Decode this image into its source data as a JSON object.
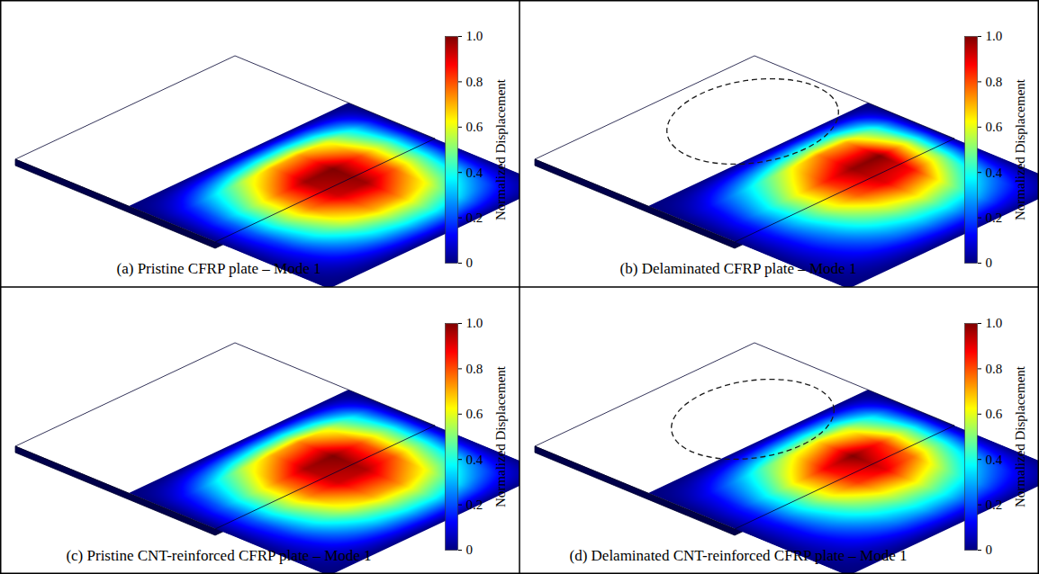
{
  "chart_data": [
    {
      "type": "heatmap",
      "title": "(a) Pristine CFRP plate – Mode 1",
      "tick_labels": false,
      "cells": [
        [
          0,
          0,
          0,
          0,
          0,
          0,
          0,
          0,
          0
        ],
        [
          0,
          0.16,
          0.37,
          0.57,
          0.7,
          0.72,
          0.6,
          0.34,
          0
        ],
        [
          0,
          0.22,
          0.5,
          0.76,
          0.97,
          1.0,
          0.8,
          0.46,
          0
        ],
        [
          0,
          0.21,
          0.49,
          0.75,
          0.92,
          0.97,
          0.79,
          0.45,
          0
        ],
        [
          0,
          0.16,
          0.38,
          0.58,
          0.71,
          0.73,
          0.61,
          0.35,
          0
        ],
        [
          0,
          0.09,
          0.2,
          0.31,
          0.38,
          0.4,
          0.33,
          0.19,
          0
        ],
        [
          0,
          0,
          0,
          0,
          0,
          0,
          0,
          0,
          0
        ]
      ],
      "colorbar": {
        "label": "Normalized Displacement",
        "range": [
          0,
          1
        ],
        "ticks": [
          0,
          0.2,
          0.4,
          0.6,
          0.8,
          {
            "value": 1,
            "label": "1.0"
          }
        ]
      }
    },
    {
      "type": "heatmap",
      "title": "(b) Delaminated CFRP plate – Mode 1",
      "tick_labels": false,
      "line_style": "dashed",
      "cells": [
        [
          0,
          0,
          0,
          0,
          0,
          0,
          0,
          0,
          0
        ],
        [
          0,
          0.12,
          0.28,
          0.45,
          0.62,
          0.74,
          0.7,
          0.42,
          0
        ],
        [
          0,
          0.16,
          0.38,
          0.62,
          0.84,
          0.98,
          1.0,
          0.58,
          0
        ],
        [
          0,
          0.15,
          0.35,
          0.58,
          0.78,
          0.9,
          0.86,
          0.52,
          0
        ],
        [
          0,
          0.12,
          0.26,
          0.42,
          0.55,
          0.62,
          0.56,
          0.33,
          0
        ],
        [
          0,
          0.07,
          0.15,
          0.23,
          0.29,
          0.31,
          0.28,
          0.17,
          0
        ],
        [
          0,
          0,
          0,
          0,
          0,
          0,
          0,
          0,
          0
        ]
      ],
      "colorbar": {
        "label": "Normalized Displacement",
        "range": [
          0,
          1
        ],
        "ticks": [
          0,
          0.2,
          0.4,
          0.6,
          0.8,
          {
            "value": 1,
            "label": "1.0"
          }
        ]
      }
    },
    {
      "type": "heatmap",
      "title": "(c) Pristine CNT-reinforced CFRP plate – Mode 1",
      "tick_labels": false,
      "cells": [
        [
          0,
          0,
          0,
          0,
          0,
          0,
          0,
          0,
          0
        ],
        [
          0,
          0.16,
          0.37,
          0.57,
          0.7,
          0.74,
          0.6,
          0.34,
          0
        ],
        [
          0,
          0.22,
          0.5,
          0.76,
          0.96,
          1.0,
          0.8,
          0.46,
          0
        ],
        [
          0,
          0.21,
          0.49,
          0.75,
          0.92,
          0.95,
          0.79,
          0.45,
          0
        ],
        [
          0,
          0.16,
          0.38,
          0.58,
          0.71,
          0.73,
          0.61,
          0.35,
          0
        ],
        [
          0,
          0.09,
          0.2,
          0.31,
          0.38,
          0.4,
          0.33,
          0.19,
          0
        ],
        [
          0,
          0,
          0,
          0,
          0,
          0,
          0,
          0,
          0
        ]
      ],
      "colorbar": {
        "label": "Normalized Displacement",
        "range": [
          0,
          1
        ],
        "ticks": [
          0,
          0.2,
          0.4,
          0.6,
          0.8,
          {
            "value": 1,
            "label": "1.0"
          }
        ]
      }
    },
    {
      "type": "heatmap",
      "title": "(d) Delaminated CNT-reinforced CFRP plate – Mode 1",
      "tick_labels": false,
      "line_style": "dashed",
      "cells": [
        [
          0,
          0,
          0,
          0,
          0,
          0,
          0,
          0,
          0
        ],
        [
          0,
          0.12,
          0.28,
          0.46,
          0.6,
          0.66,
          0.58,
          0.34,
          0
        ],
        [
          0,
          0.16,
          0.4,
          0.66,
          0.88,
          1.0,
          0.84,
          0.48,
          0
        ],
        [
          0,
          0.15,
          0.38,
          0.62,
          0.82,
          0.9,
          0.76,
          0.44,
          0
        ],
        [
          0,
          0.12,
          0.28,
          0.44,
          0.56,
          0.6,
          0.5,
          0.3,
          0
        ],
        [
          0,
          0.07,
          0.15,
          0.24,
          0.3,
          0.31,
          0.26,
          0.15,
          0
        ],
        [
          0,
          0,
          0,
          0,
          0,
          0,
          0,
          0,
          0
        ]
      ],
      "colorbar": {
        "label": "Normalized Displacement",
        "range": [
          0,
          1
        ],
        "ticks": [
          0,
          0.2,
          0.4,
          0.6,
          0.8,
          {
            "value": 1,
            "label": "1.0"
          }
        ]
      }
    }
  ]
}
